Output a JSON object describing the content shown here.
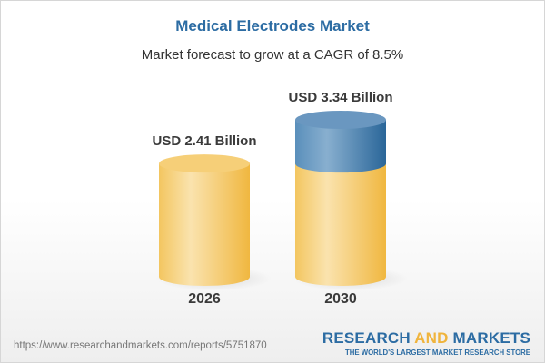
{
  "title": "Medical Electrodes Market",
  "subtitle": "Market forecast to grow at a CAGR of 8.5%",
  "chart_data": {
    "type": "bar",
    "style": "3d-cylinder",
    "categories": [
      "2026",
      "2030"
    ],
    "values": [
      2.41,
      3.34
    ],
    "data_labels": [
      "USD 2.41 Billion",
      "USD 3.34 Billion"
    ],
    "unit": "USD Billion",
    "highlight_increment": true,
    "colors": {
      "base": "#f3c35a",
      "increment": "#3f7aab"
    },
    "grid": false
  },
  "footer": {
    "url": "https://www.researchandmarkets.com/reports/5751870",
    "logo_part1": "RESEARCH ",
    "logo_part2": "AND",
    "logo_part3": " MARKETS",
    "tagline": "THE WORLD'S LARGEST MARKET RESEARCH STORE"
  }
}
